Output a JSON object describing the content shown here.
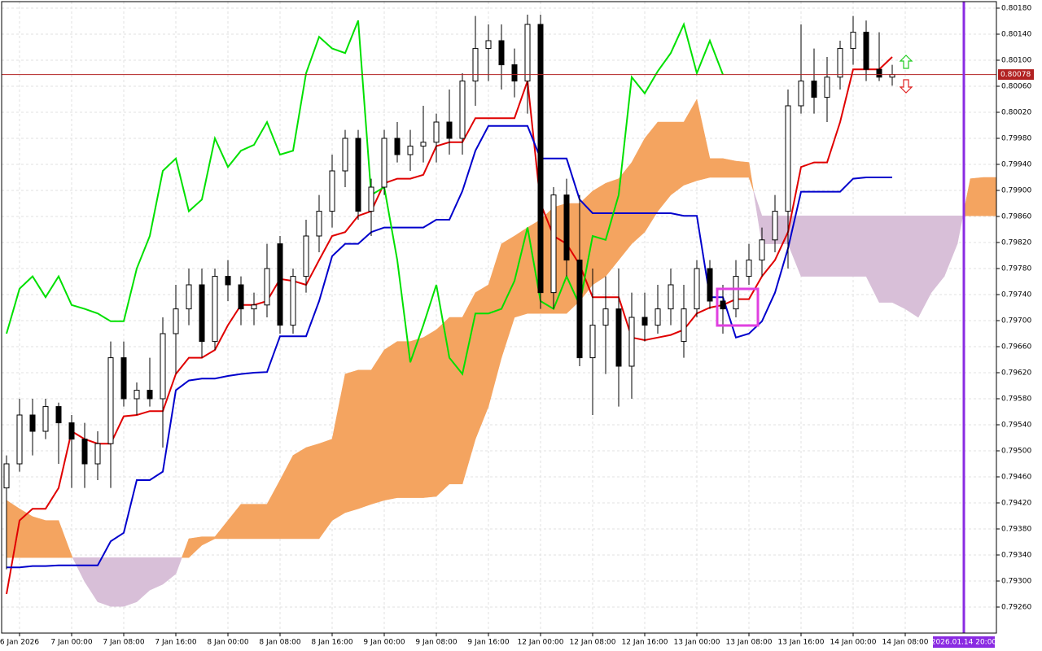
{
  "chart_data": {
    "type": "candlestick",
    "xlim": [
      -3,
      150
    ],
    "ylim": [
      0.7922,
      0.8019
    ],
    "grid": true,
    "xticks": [
      {
        "value": 0,
        "label": "6 Jan 2026"
      },
      {
        "value": 8,
        "label": "7 Jan 00:00"
      },
      {
        "value": 16,
        "label": "7 Jan 08:00"
      },
      {
        "value": 24,
        "label": "7 Jan 16:00"
      },
      {
        "value": 32,
        "label": "8 Jan 00:00"
      },
      {
        "value": 40,
        "label": "8 Jan 08:00"
      },
      {
        "value": 48,
        "label": "8 Jan 16:00"
      },
      {
        "value": 56,
        "label": "9 Jan 00:00"
      },
      {
        "value": 64,
        "label": "9 Jan 08:00"
      },
      {
        "value": 72,
        "label": "9 Jan 16:00"
      },
      {
        "value": 80,
        "label": "12 Jan 00:00"
      },
      {
        "value": 88,
        "label": "12 Jan 08:00"
      },
      {
        "value": 96,
        "label": "12 Jan 16:00"
      },
      {
        "value": 104,
        "label": "13 Jan 00:00"
      },
      {
        "value": 112,
        "label": "13 Jan 08:00"
      },
      {
        "value": 120,
        "label": "13 Jan 16:00"
      },
      {
        "value": 128,
        "label": "14 Jan 00:00"
      },
      {
        "value": 136,
        "label": "14 Jan 08:00"
      }
    ],
    "yticks": [
      {
        "value": 0.7926,
        "label": "0.79260"
      },
      {
        "value": 0.793,
        "label": "0.79300"
      },
      {
        "value": 0.7934,
        "label": "0.79340"
      },
      {
        "value": 0.7938,
        "label": "0.79380"
      },
      {
        "value": 0.7942,
        "label": "0.79420"
      },
      {
        "value": 0.7946,
        "label": "0.79460"
      },
      {
        "value": 0.795,
        "label": "0.79500"
      },
      {
        "value": 0.7954,
        "label": "0.79540"
      },
      {
        "value": 0.7958,
        "label": "0.79580"
      },
      {
        "value": 0.7962,
        "label": "0.79620"
      },
      {
        "value": 0.7966,
        "label": "0.79660"
      },
      {
        "value": 0.797,
        "label": "0.79700"
      },
      {
        "value": 0.7974,
        "label": "0.79740"
      },
      {
        "value": 0.7978,
        "label": "0.79780"
      },
      {
        "value": 0.7982,
        "label": "0.79820"
      },
      {
        "value": 0.7986,
        "label": "0.79860"
      },
      {
        "value": 0.799,
        "label": "0.79900"
      },
      {
        "value": 0.7994,
        "label": "0.79940"
      },
      {
        "value": 0.7998,
        "label": "0.79980"
      },
      {
        "value": 0.8002,
        "label": "0.80020"
      },
      {
        "value": 0.8006,
        "label": "0.80060"
      },
      {
        "value": 0.801,
        "label": "0.80100"
      },
      {
        "value": 0.8014,
        "label": "0.80140"
      },
      {
        "value": 0.8018,
        "label": "0.80180"
      }
    ],
    "candles": {
      "up_color": "#ffffff",
      "down_color": "#000000",
      "x": [
        -2,
        0,
        2,
        4,
        6,
        8,
        10,
        12,
        14,
        16,
        18,
        20,
        22,
        24,
        26,
        28,
        30,
        32,
        34,
        36,
        38,
        40,
        42,
        44,
        46,
        48,
        50,
        52,
        54,
        56,
        58,
        60,
        62,
        64,
        66,
        68,
        70,
        72,
        74,
        76,
        78,
        80,
        82,
        84,
        86,
        88,
        90,
        92,
        94,
        96,
        98,
        100,
        102,
        104,
        106,
        108,
        110,
        112,
        114,
        116,
        118,
        120,
        122,
        124,
        126,
        128,
        130,
        132,
        134
      ],
      "open": [
        0.79443,
        0.7948,
        0.79555,
        0.7953,
        0.79568,
        0.79543,
        0.79518,
        0.7948,
        0.79511,
        0.79643,
        0.7958,
        0.79593,
        0.7958,
        0.7968,
        0.79718,
        0.79755,
        0.79668,
        0.79768,
        0.79755,
        0.79718,
        0.79724,
        0.79818,
        0.79693,
        0.79768,
        0.7983,
        0.79868,
        0.7993,
        0.7998,
        0.79868,
        0.79905,
        0.7998,
        0.79955,
        0.79968,
        0.79974,
        0.80005,
        0.7998,
        0.80068,
        0.80118,
        0.8013,
        0.80093,
        0.80068,
        0.80155,
        0.79743,
        0.79893,
        0.79793,
        0.79643,
        0.79693,
        0.79718,
        0.7963,
        0.79705,
        0.79693,
        0.79718,
        0.79668,
        0.79718,
        0.7978,
        0.7973,
        0.79718,
        0.79768,
        0.79793,
        0.79824,
        0.79868,
        0.8003,
        0.80068,
        0.80043,
        0.80074,
        0.80118,
        0.80143,
        0.80086,
        0.80074
      ],
      "high": [
        0.79493,
        0.7958,
        0.7958,
        0.7958,
        0.79574,
        0.79555,
        0.79543,
        0.7953,
        0.79668,
        0.79668,
        0.79605,
        0.79643,
        0.79705,
        0.79755,
        0.7978,
        0.7978,
        0.7978,
        0.79793,
        0.79768,
        0.79743,
        0.79818,
        0.7983,
        0.7978,
        0.79855,
        0.79893,
        0.79955,
        0.79993,
        0.79993,
        0.79918,
        0.79993,
        0.80005,
        0.79993,
        0.8003,
        0.80018,
        0.80055,
        0.8008,
        0.80168,
        0.80155,
        0.80155,
        0.80118,
        0.8017,
        0.8017,
        0.79905,
        0.79918,
        0.79893,
        0.7978,
        0.79768,
        0.7978,
        0.79743,
        0.79743,
        0.79755,
        0.7978,
        0.79755,
        0.79793,
        0.79793,
        0.79755,
        0.79793,
        0.79818,
        0.79843,
        0.79893,
        0.80055,
        0.80155,
        0.80118,
        0.80105,
        0.8013,
        0.80168,
        0.80161,
        0.80143,
        0.80093
      ],
      "low": [
        0.79318,
        0.79468,
        0.79493,
        0.79518,
        0.7948,
        0.79443,
        0.79443,
        0.79455,
        0.79443,
        0.79568,
        0.79555,
        0.79568,
        0.79505,
        0.79618,
        0.79693,
        0.79643,
        0.79655,
        0.7973,
        0.79693,
        0.79693,
        0.79705,
        0.7968,
        0.7968,
        0.79743,
        0.79805,
        0.79843,
        0.79905,
        0.79855,
        0.7983,
        0.79893,
        0.79943,
        0.7993,
        0.79943,
        0.79943,
        0.79955,
        0.79955,
        0.8003,
        0.80068,
        0.80055,
        0.80043,
        0.80018,
        0.79718,
        0.79718,
        0.79768,
        0.7963,
        0.79555,
        0.79618,
        0.79568,
        0.7958,
        0.79668,
        0.7968,
        0.79693,
        0.79643,
        0.79705,
        0.79718,
        0.7968,
        0.79705,
        0.79755,
        0.79768,
        0.79805,
        0.7978,
        0.80018,
        0.80018,
        0.80005,
        0.80055,
        0.80093,
        0.80068,
        0.80068,
        0.80061
      ],
      "close": [
        0.7948,
        0.79555,
        0.7953,
        0.79568,
        0.79543,
        0.79518,
        0.7948,
        0.79511,
        0.79643,
        0.7958,
        0.79593,
        0.7958,
        0.7968,
        0.79718,
        0.79755,
        0.79668,
        0.79768,
        0.79755,
        0.79718,
        0.79724,
        0.7978,
        0.79693,
        0.79768,
        0.7983,
        0.79868,
        0.7993,
        0.7998,
        0.79868,
        0.79905,
        0.7998,
        0.79955,
        0.79968,
        0.79974,
        0.80005,
        0.7998,
        0.80068,
        0.80118,
        0.8013,
        0.80093,
        0.80068,
        0.80155,
        0.79743,
        0.79893,
        0.79793,
        0.79643,
        0.79693,
        0.79718,
        0.7963,
        0.79705,
        0.79693,
        0.79718,
        0.79755,
        0.79718,
        0.7978,
        0.7973,
        0.79718,
        0.79768,
        0.79793,
        0.79824,
        0.79868,
        0.8003,
        0.80068,
        0.80043,
        0.80074,
        0.80118,
        0.80143,
        0.80086,
        0.80074,
        0.80078
      ]
    },
    "lines": [
      {
        "color": "#e00000",
        "values": [
          0.7928,
          0.79393,
          0.79411,
          0.79411,
          0.79443,
          0.7953,
          0.79518,
          0.79511,
          0.79511,
          0.79553,
          0.79555,
          0.79561,
          0.79561,
          0.79618,
          0.79643,
          0.79643,
          0.79655,
          0.79693,
          0.79724,
          0.79724,
          0.7973,
          0.79764,
          0.79761,
          0.79755,
          0.79793,
          0.7983,
          0.79836,
          0.79861,
          0.79868,
          0.79911,
          0.79918,
          0.79918,
          0.79924,
          0.79968,
          0.79974,
          0.79974,
          0.80011,
          0.80011,
          0.80011,
          0.80011,
          0.80068,
          0.7988,
          0.7983,
          0.79818,
          0.79786,
          0.79736,
          0.79736,
          0.79736,
          0.79674,
          0.7967,
          0.79674,
          0.79678,
          0.79686,
          0.79711,
          0.7972,
          0.79724,
          0.79733,
          0.79733,
          0.79768,
          0.79793,
          0.79836,
          0.79936,
          0.79943,
          0.79943,
          0.80005,
          0.80086,
          0.80086,
          0.80086,
          0.80105
        ]
      },
      {
        "color": "#0000cc",
        "values": [
          0.79321,
          0.79321,
          0.79323,
          0.79323,
          0.79324,
          0.79324,
          0.79324,
          0.79324,
          0.79361,
          0.79374,
          0.79455,
          0.79455,
          0.79468,
          0.79593,
          0.79608,
          0.79611,
          0.79611,
          0.79615,
          0.79618,
          0.7962,
          0.79621,
          0.79676,
          0.79676,
          0.79676,
          0.7973,
          0.79799,
          0.79818,
          0.79818,
          0.79836,
          0.79843,
          0.79843,
          0.79843,
          0.79843,
          0.79855,
          0.79855,
          0.79899,
          0.79961,
          0.79999,
          0.79999,
          0.79999,
          0.79999,
          0.79949,
          0.79949,
          0.79949,
          0.79886,
          0.79865,
          0.79865,
          0.79865,
          0.79865,
          0.79865,
          0.79865,
          0.79865,
          0.79861,
          0.79861,
          0.79736,
          0.79736,
          0.79674,
          0.7968,
          0.79699,
          0.79743,
          0.79811,
          0.79898,
          0.79898,
          0.79898,
          0.79898,
          0.79918,
          0.7992,
          0.7992,
          0.7992
        ]
      },
      {
        "color": "#00e000",
        "x": [
          -2,
          0,
          2,
          4,
          6,
          8,
          10,
          12,
          14,
          16,
          18,
          20,
          22,
          24,
          26,
          28,
          30,
          32,
          34,
          36,
          38,
          40,
          42,
          44,
          46,
          48,
          50,
          52,
          54,
          56,
          58,
          60,
          62,
          64,
          66,
          68,
          70,
          72,
          74,
          76,
          78,
          80,
          82,
          84,
          86,
          88,
          90,
          92,
          94,
          96,
          98,
          100,
          102,
          104,
          106,
          108
        ],
        "values": [
          0.7968,
          0.79749,
          0.79768,
          0.79736,
          0.79768,
          0.79724,
          0.79718,
          0.79711,
          0.79699,
          0.79699,
          0.7978,
          0.7983,
          0.7993,
          0.79949,
          0.79868,
          0.79886,
          0.7998,
          0.79936,
          0.79961,
          0.7997,
          0.80005,
          0.79955,
          0.79961,
          0.8008,
          0.80136,
          0.80118,
          0.80111,
          0.80161,
          0.79893,
          0.79905,
          0.79793,
          0.79636,
          0.79693,
          0.79755,
          0.79643,
          0.79618,
          0.79711,
          0.79711,
          0.79718,
          0.79761,
          0.79843,
          0.7973,
          0.79718,
          0.79768,
          0.79724,
          0.7983,
          0.79824,
          0.79893,
          0.80074,
          0.80049,
          0.80083,
          0.80111,
          0.80155,
          0.8008,
          0.8013,
          0.80078
        ]
      }
    ],
    "cloud": {
      "bull_color": "#f4a460",
      "bear_color": "#d8bfd8",
      "x": [
        -2,
        0,
        2,
        4,
        6,
        8,
        10,
        12,
        14,
        16,
        18,
        20,
        22,
        24,
        26,
        28,
        30,
        32,
        34,
        36,
        38,
        40,
        42,
        44,
        46,
        48,
        50,
        52,
        54,
        56,
        58,
        60,
        62,
        64,
        66,
        68,
        70,
        72,
        74,
        76,
        78,
        80,
        82,
        84,
        86,
        88,
        90,
        92,
        94,
        96,
        98,
        100,
        102,
        104,
        106,
        108,
        110,
        112,
        114,
        116,
        118,
        120,
        122,
        124,
        126,
        128,
        130,
        132,
        134,
        136,
        138,
        140,
        142,
        144,
        146,
        148,
        150
      ],
      "span_a": [
        0.79424,
        0.79411,
        0.79399,
        0.79393,
        0.79393,
        0.79339,
        0.79299,
        0.79268,
        0.79261,
        0.79261,
        0.79268,
        0.79286,
        0.79295,
        0.79311,
        0.79365,
        0.79368,
        0.79368,
        0.79393,
        0.79418,
        0.79418,
        0.79418,
        0.79455,
        0.79493,
        0.79505,
        0.79511,
        0.79518,
        0.79618,
        0.79624,
        0.79624,
        0.79655,
        0.79668,
        0.79668,
        0.79674,
        0.79686,
        0.79705,
        0.79705,
        0.79743,
        0.79755,
        0.79818,
        0.7983,
        0.79843,
        0.79855,
        0.79874,
        0.7988,
        0.7988,
        0.79899,
        0.79911,
        0.79918,
        0.79943,
        0.7998,
        0.80005,
        0.80005,
        0.80005,
        0.8004,
        0.79949,
        0.79949,
        0.79945,
        0.79943,
        0.79818,
        0.79818,
        0.79818,
        0.79768,
        0.79768,
        0.79768,
        0.79768,
        0.79768,
        0.79768,
        0.79728,
        0.79728,
        0.79718,
        0.79705,
        0.79743,
        0.79768,
        0.79818,
        0.79918,
        0.7992,
        0.7992
      ],
      "span_b": [
        0.79336,
        0.79336,
        0.79336,
        0.79336,
        0.79336,
        0.79336,
        0.79336,
        0.79336,
        0.79336,
        0.79336,
        0.79336,
        0.79336,
        0.79336,
        0.79336,
        0.79336,
        0.79355,
        0.79365,
        0.79365,
        0.79365,
        0.79365,
        0.79365,
        0.79365,
        0.79365,
        0.79365,
        0.79365,
        0.79393,
        0.79405,
        0.79411,
        0.79418,
        0.79424,
        0.79428,
        0.79428,
        0.79428,
        0.7943,
        0.79449,
        0.79449,
        0.79518,
        0.79568,
        0.79643,
        0.79705,
        0.79711,
        0.79711,
        0.79711,
        0.79711,
        0.7973,
        0.79755,
        0.79768,
        0.79793,
        0.79818,
        0.79836,
        0.79868,
        0.79893,
        0.79908,
        0.79915,
        0.7992,
        0.7992,
        0.7992,
        0.7992,
        0.79861,
        0.79861,
        0.79861,
        0.79861,
        0.79861,
        0.79861,
        0.79861,
        0.79861,
        0.79861,
        0.79861,
        0.79861,
        0.79861,
        0.79861,
        0.79861,
        0.79861,
        0.79861,
        0.79861,
        0.79861,
        0.79861
      ]
    },
    "price_line": {
      "value": 0.80078,
      "color": "#b22222"
    },
    "cursor_line": {
      "x": 145,
      "label": "2026.01.14 20:00",
      "color": "#8a2be2"
    }
  }
}
